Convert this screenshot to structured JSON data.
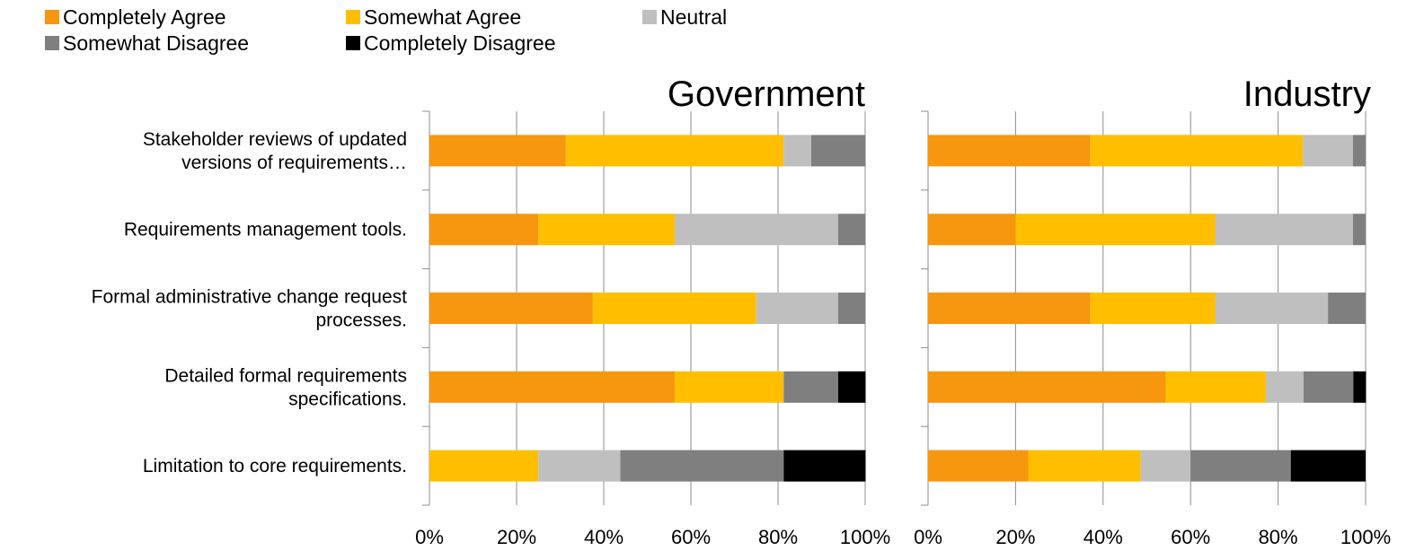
{
  "chart_data": {
    "type": "bar",
    "orientation": "horizontal",
    "stacking": "percent",
    "legend": {
      "placement": "top-left",
      "entries": [
        {
          "name": "Completely Agree",
          "color": "#F7960F"
        },
        {
          "name": "Somewhat Agree",
          "color": "#FFBF00"
        },
        {
          "name": "Neutral",
          "color": "#BFBFBF"
        },
        {
          "name": "Somewhat Disagree",
          "color": "#7F7F7F"
        },
        {
          "name": "Completely Disagree",
          "color": "#000000"
        }
      ]
    },
    "categories": [
      [
        "Stakeholder reviews of updated",
        "versions of requirements…"
      ],
      [
        "Requirements management tools."
      ],
      [
        "Formal administrative change request",
        "processes."
      ],
      [
        "Detailed formal requirements",
        "specifications."
      ],
      [
        "Limitation to core requirements."
      ]
    ],
    "x_ticks": [
      "0%",
      "20%",
      "40%",
      "60%",
      "80%",
      "100%"
    ],
    "xlim": [
      0,
      100
    ],
    "grid": "vertical",
    "panels": [
      {
        "title": "Government",
        "series": [
          {
            "name": "Completely Agree",
            "values": [
              31.3,
              25,
              37.5,
              56.3,
              0
            ]
          },
          {
            "name": "Somewhat Agree",
            "values": [
              50,
              31.3,
              37.5,
              25,
              25
            ]
          },
          {
            "name": "Neutral",
            "values": [
              6.3,
              37.5,
              18.8,
              0,
              18.8
            ]
          },
          {
            "name": "Somewhat Disagree",
            "values": [
              12.5,
              6.3,
              6.3,
              12.5,
              37.5
            ]
          },
          {
            "name": "Completely Disagree",
            "values": [
              0,
              0,
              0,
              6.3,
              18.8
            ]
          }
        ]
      },
      {
        "title": "Industry",
        "series": [
          {
            "name": "Completely Agree",
            "values": [
              37.1,
              20,
              37.1,
              54.3,
              22.9
            ]
          },
          {
            "name": "Somewhat Agree",
            "values": [
              48.6,
              45.7,
              28.6,
              22.9,
              25.7
            ]
          },
          {
            "name": "Neutral",
            "values": [
              11.4,
              31.4,
              25.7,
              8.6,
              11.4
            ]
          },
          {
            "name": "Somewhat Disagree",
            "values": [
              2.9,
              2.9,
              8.6,
              11.4,
              22.9
            ]
          },
          {
            "name": "Completely Disagree",
            "values": [
              0,
              0,
              0,
              2.9,
              17.1
            ]
          }
        ]
      }
    ]
  }
}
